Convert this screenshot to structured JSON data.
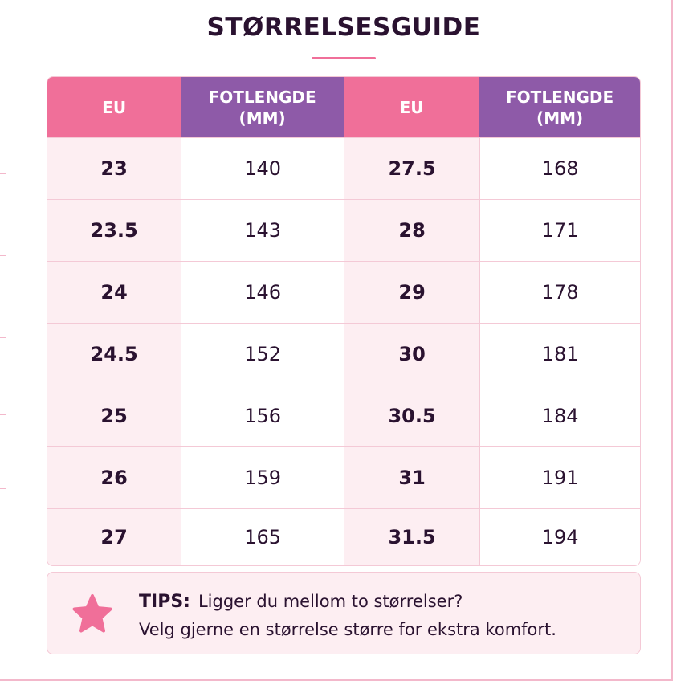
{
  "header": {
    "title": "STØRRELSESGUIDE"
  },
  "table": {
    "columns": [
      "EU",
      "FOTLENGDE (MM)",
      "EU",
      "FOTLENGDE (MM)"
    ],
    "rows": [
      [
        "23",
        "140",
        "27.5",
        "168"
      ],
      [
        "23.5",
        "143",
        "28",
        "171"
      ],
      [
        "24",
        "146",
        "29",
        "178"
      ],
      [
        "24.5",
        "152",
        "30",
        "181"
      ],
      [
        "25",
        "156",
        "30.5",
        "184"
      ],
      [
        "26",
        "159",
        "31",
        "191"
      ],
      [
        "27",
        "165",
        "31.5",
        "194"
      ]
    ]
  },
  "tips": {
    "label": "TIPS:",
    "lines": [
      "Ligger du mellom to størrelser?",
      "Velg gjerne en størrelse større for ekstra komfort."
    ]
  }
}
